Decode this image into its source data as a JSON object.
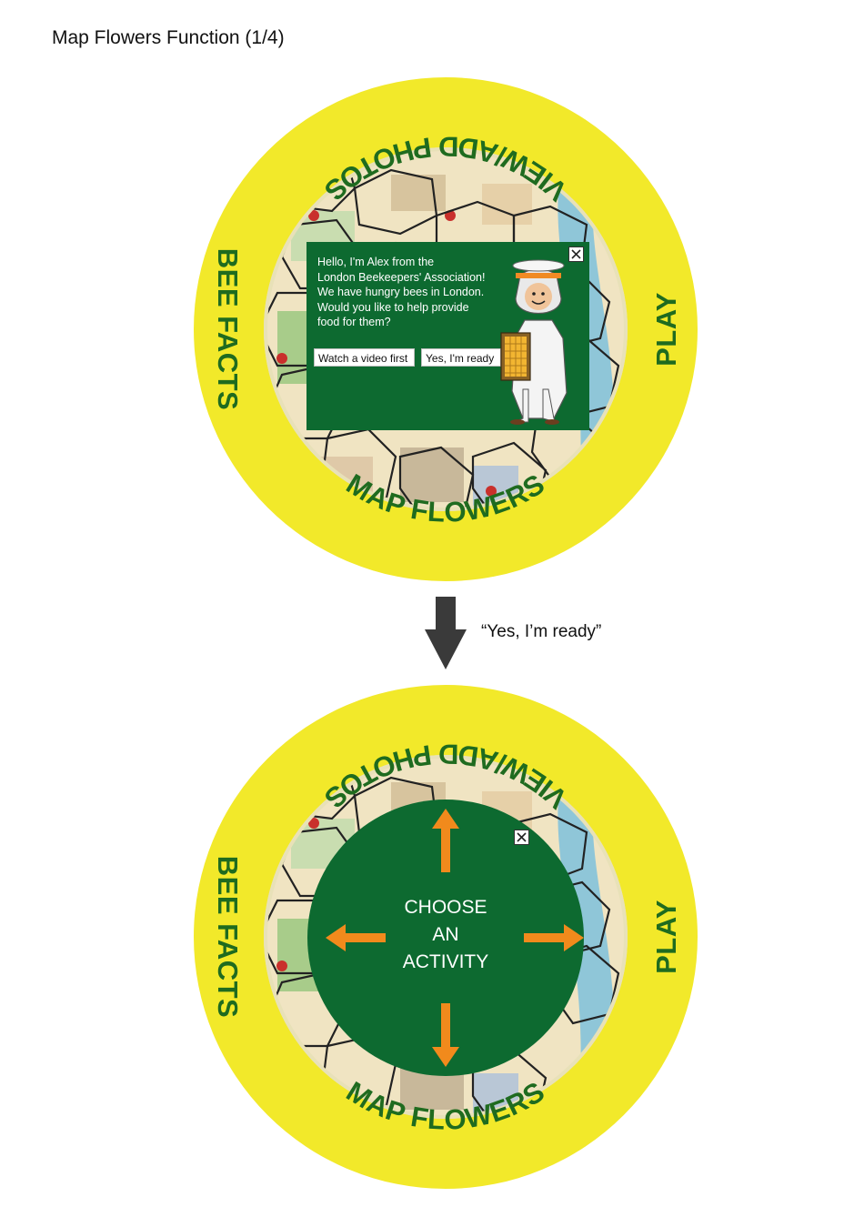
{
  "page_title": "Map Flowers Function (1/4)",
  "ring_labels": {
    "top": "VIEW/ADD PHOTOS",
    "right": "PLAY",
    "bottom": "MAP FLOWERS",
    "left": "BEE FACTS"
  },
  "dialog": {
    "lines": [
      "Hello, I'm Alex from the",
      "London Beekeepers' Association!",
      "We have hungry bees in London.",
      "Would you like to help provide",
      "food for them?"
    ],
    "watch_button": "Watch a video first",
    "ready_button": "Yes, I'm ready",
    "close_icon": "close-icon"
  },
  "transition_caption": "“Yes, I’m ready”",
  "activity": {
    "lines": [
      "CHOOSE",
      "AN",
      "ACTIVITY"
    ]
  },
  "colors": {
    "ring_yellow": "#f2e92a",
    "label_green": "#1f6b1f",
    "panel_green": "#0d6a30",
    "arrow_orange": "#f18a1c",
    "flow_arrow": "#3a3a3a"
  }
}
